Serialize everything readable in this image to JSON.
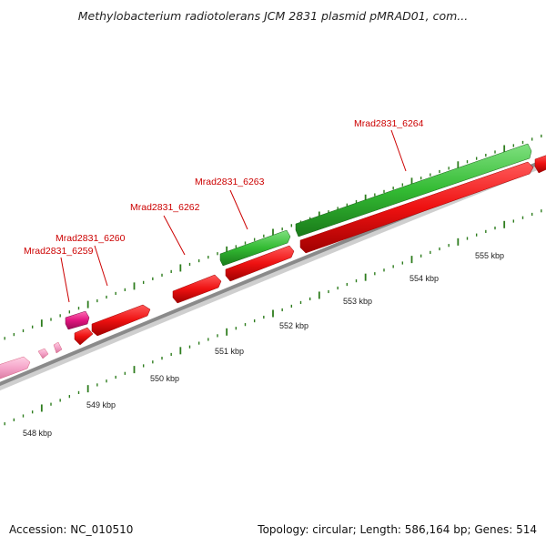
{
  "title": "Methylobacterium radiotolerans JCM 2831 plasmid pMRAD01, com...",
  "footer": {
    "accession": "Accession: NC_010510",
    "summary": "Topology: circular; Length: 586,164 bp; Genes: 514"
  },
  "scale_labels": [
    "548 kbp",
    "549 kbp",
    "550 kbp",
    "551 kbp",
    "552 kbp",
    "553 kbp",
    "554 kbp",
    "555 kbp"
  ],
  "gene_labels": [
    "Mrad2831_6259",
    "Mrad2831_6260",
    "Mrad2831_6262",
    "Mrad2831_6263",
    "Mrad2831_6264"
  ],
  "colors": {
    "backbone": "#8a8a8a",
    "cds_red": "#ee1111",
    "cds_green": "#33bb33",
    "cds_magenta": "#e0157f",
    "cds_pink": "#f4a3c8",
    "tick": "#2e7d1e",
    "label": "#cc0000"
  }
}
